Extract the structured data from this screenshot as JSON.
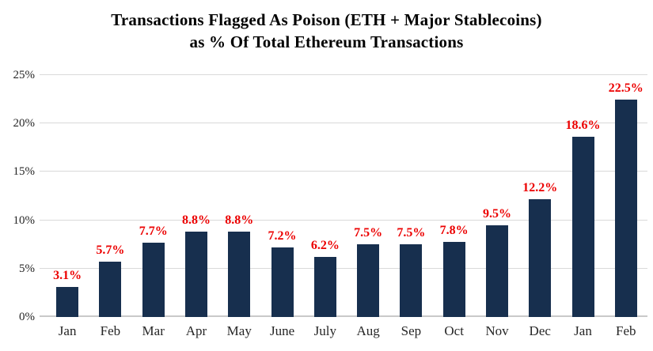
{
  "chart_data": {
    "type": "bar",
    "title": "Transactions Flagged As Poison (ETH + Major Stablecoins) as % Of Total Ethereum Transactions",
    "title_lines": [
      "Transactions Flagged As Poison (ETH + Major Stablecoins)",
      "as % Of Total Ethereum Transactions"
    ],
    "categories": [
      "Jan",
      "Feb",
      "Mar",
      "Apr",
      "May",
      "June",
      "July",
      "Aug",
      "Sep",
      "Oct",
      "Nov",
      "Dec",
      "Jan",
      "Feb"
    ],
    "values": [
      3.1,
      5.7,
      7.7,
      8.8,
      8.8,
      7.2,
      6.2,
      7.5,
      7.5,
      7.8,
      9.5,
      12.2,
      18.6,
      22.5
    ],
    "data_labels": [
      "3.1%",
      "5.7%",
      "7.7%",
      "8.8%",
      "8.8%",
      "7.2%",
      "6.2%",
      "7.5%",
      "7.5%",
      "7.8%",
      "9.5%",
      "12.2%",
      "18.6%",
      "22.5%"
    ],
    "y_ticks": [
      "0%",
      "5%",
      "10%",
      "15%",
      "20%",
      "25%"
    ],
    "ylim": [
      0,
      25
    ],
    "y_tick_step": 5,
    "grid": true,
    "legend": false,
    "xlabel": "",
    "ylabel": "",
    "colors": {
      "bar": "#172f4e",
      "data_label": "#ec0000",
      "gridline": "#d9d9d9",
      "axis_line": "#c9c9c9",
      "tick_label": "#262626",
      "title": "#000000"
    }
  }
}
